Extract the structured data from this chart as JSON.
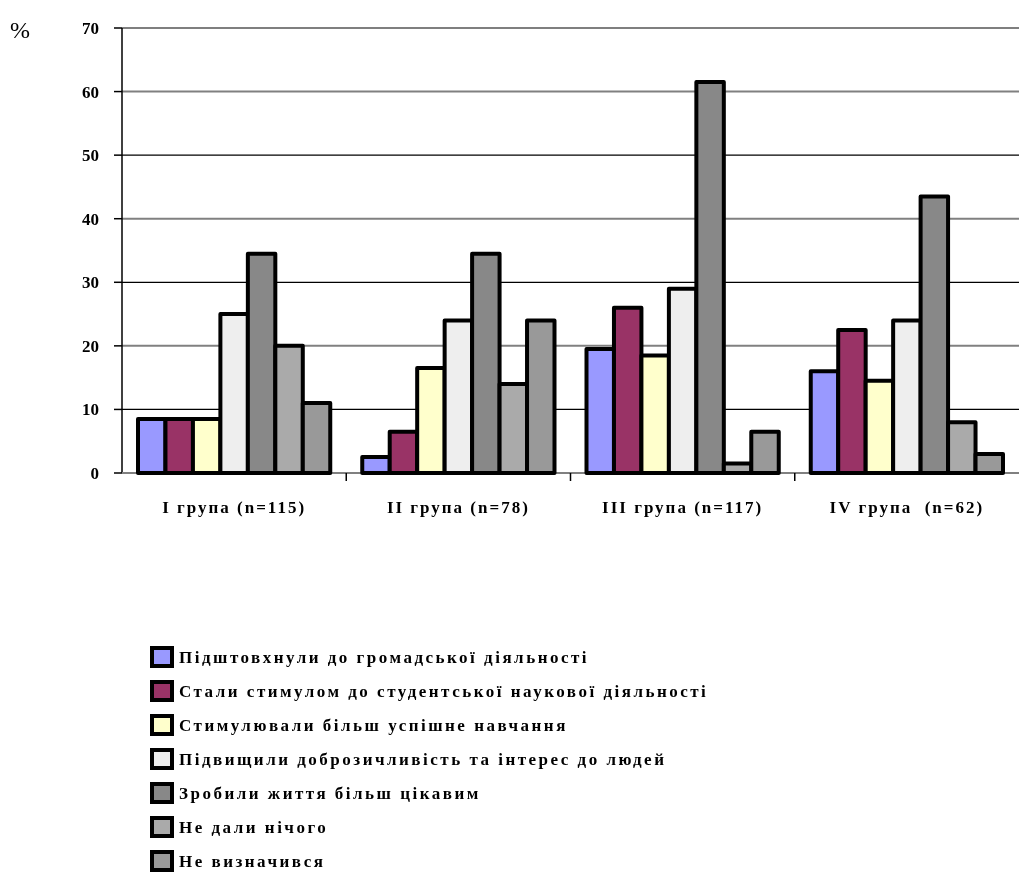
{
  "chart_data": {
    "type": "bar",
    "ylabel": "%",
    "categories": [
      "I група (n=115)",
      "II група (n=78)",
      "III група (n=117)",
      "IV група  (n=62)"
    ],
    "series": [
      {
        "name": "Підштовхнули до громадської діяльності",
        "color": "#9999ff",
        "values": [
          8.5,
          2.5,
          19.5,
          16
        ]
      },
      {
        "name": "Стали стимулом до студентської наукової діяльності",
        "color": "#993366",
        "values": [
          8.5,
          6.5,
          26,
          22.5
        ]
      },
      {
        "name": "Стимулювали більш успішне навчання",
        "color": "#ffffcc",
        "values": [
          8.5,
          16.5,
          18.5,
          14.5
        ]
      },
      {
        "name": "Підвищили доброзичливість та інтерес до людей",
        "color": "#eeeeee",
        "values": [
          25,
          24,
          29,
          24
        ]
      },
      {
        "name": "Зробили життя більш цікавим",
        "color": "#888888",
        "values": [
          34.5,
          34.5,
          61.5,
          43.5
        ]
      },
      {
        "name": "Не дали нічого",
        "color": "#aaaaaa",
        "values": [
          20,
          14,
          1.5,
          8
        ]
      },
      {
        "name": "Не визначився",
        "color": "#999999",
        "values": [
          11,
          24,
          6.5,
          3
        ]
      }
    ],
    "ylim": [
      0,
      70
    ],
    "yticks": [
      0,
      10,
      20,
      30,
      40,
      50,
      60,
      70
    ],
    "grid": "y",
    "legend": "bottom"
  }
}
